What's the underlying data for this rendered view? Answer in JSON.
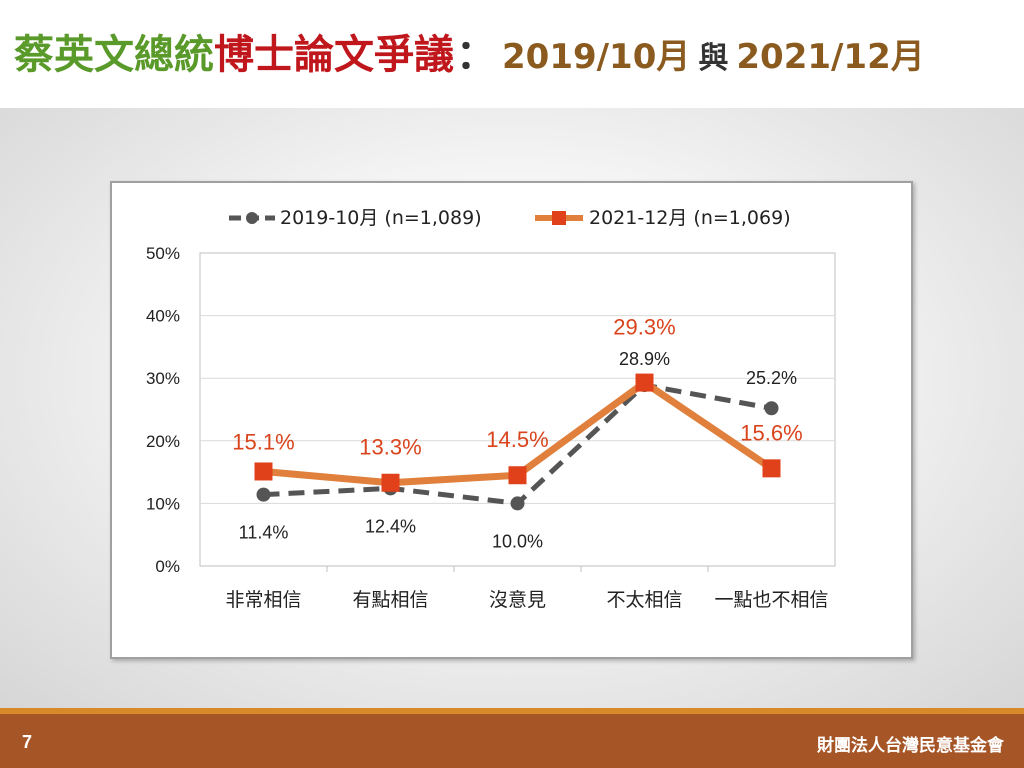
{
  "slide": {
    "title_part1": "蔡英文總統",
    "title_part2": "博士論文爭議",
    "title_colon": "：",
    "title_period1": "2019/10月",
    "title_connector": "與",
    "title_period2": "2021/12月",
    "page_number": "7",
    "organization": "財團法人台灣民意基金會"
  },
  "colors": {
    "title_green": "#5a9a2a",
    "title_red": "#c0171d",
    "title_brown": "#8a5a1e",
    "series_2019": "#555555",
    "series_2021": "#e0803c",
    "marker_2021": "#e0401a",
    "label_2021": "#d9441c",
    "footer_bg": "#a65526",
    "footer_line": "#d88a2a"
  },
  "chart_data": {
    "type": "line",
    "categories": [
      "非常相信",
      "有點相信",
      "沒意見",
      "不太相信",
      "一點也不相信"
    ],
    "ylim": [
      0,
      50
    ],
    "yticks": [
      "0%",
      "10%",
      "20%",
      "30%",
      "40%",
      "50%"
    ],
    "grid": true,
    "legend_position": "top",
    "series": [
      {
        "name": "2019-10月  (n=1,089)",
        "values": [
          11.4,
          12.4,
          10.0,
          28.9,
          25.2
        ],
        "labels": [
          "11.4%",
          "12.4%",
          "10.0%",
          "28.9%",
          "25.2%"
        ],
        "style": "dashed"
      },
      {
        "name": "2021-12月  (n=1,069)",
        "values": [
          15.1,
          13.3,
          14.5,
          29.3,
          15.6
        ],
        "labels": [
          "15.1%",
          "13.3%",
          "14.5%",
          "29.3%",
          "15.6%"
        ],
        "style": "solid"
      }
    ]
  }
}
